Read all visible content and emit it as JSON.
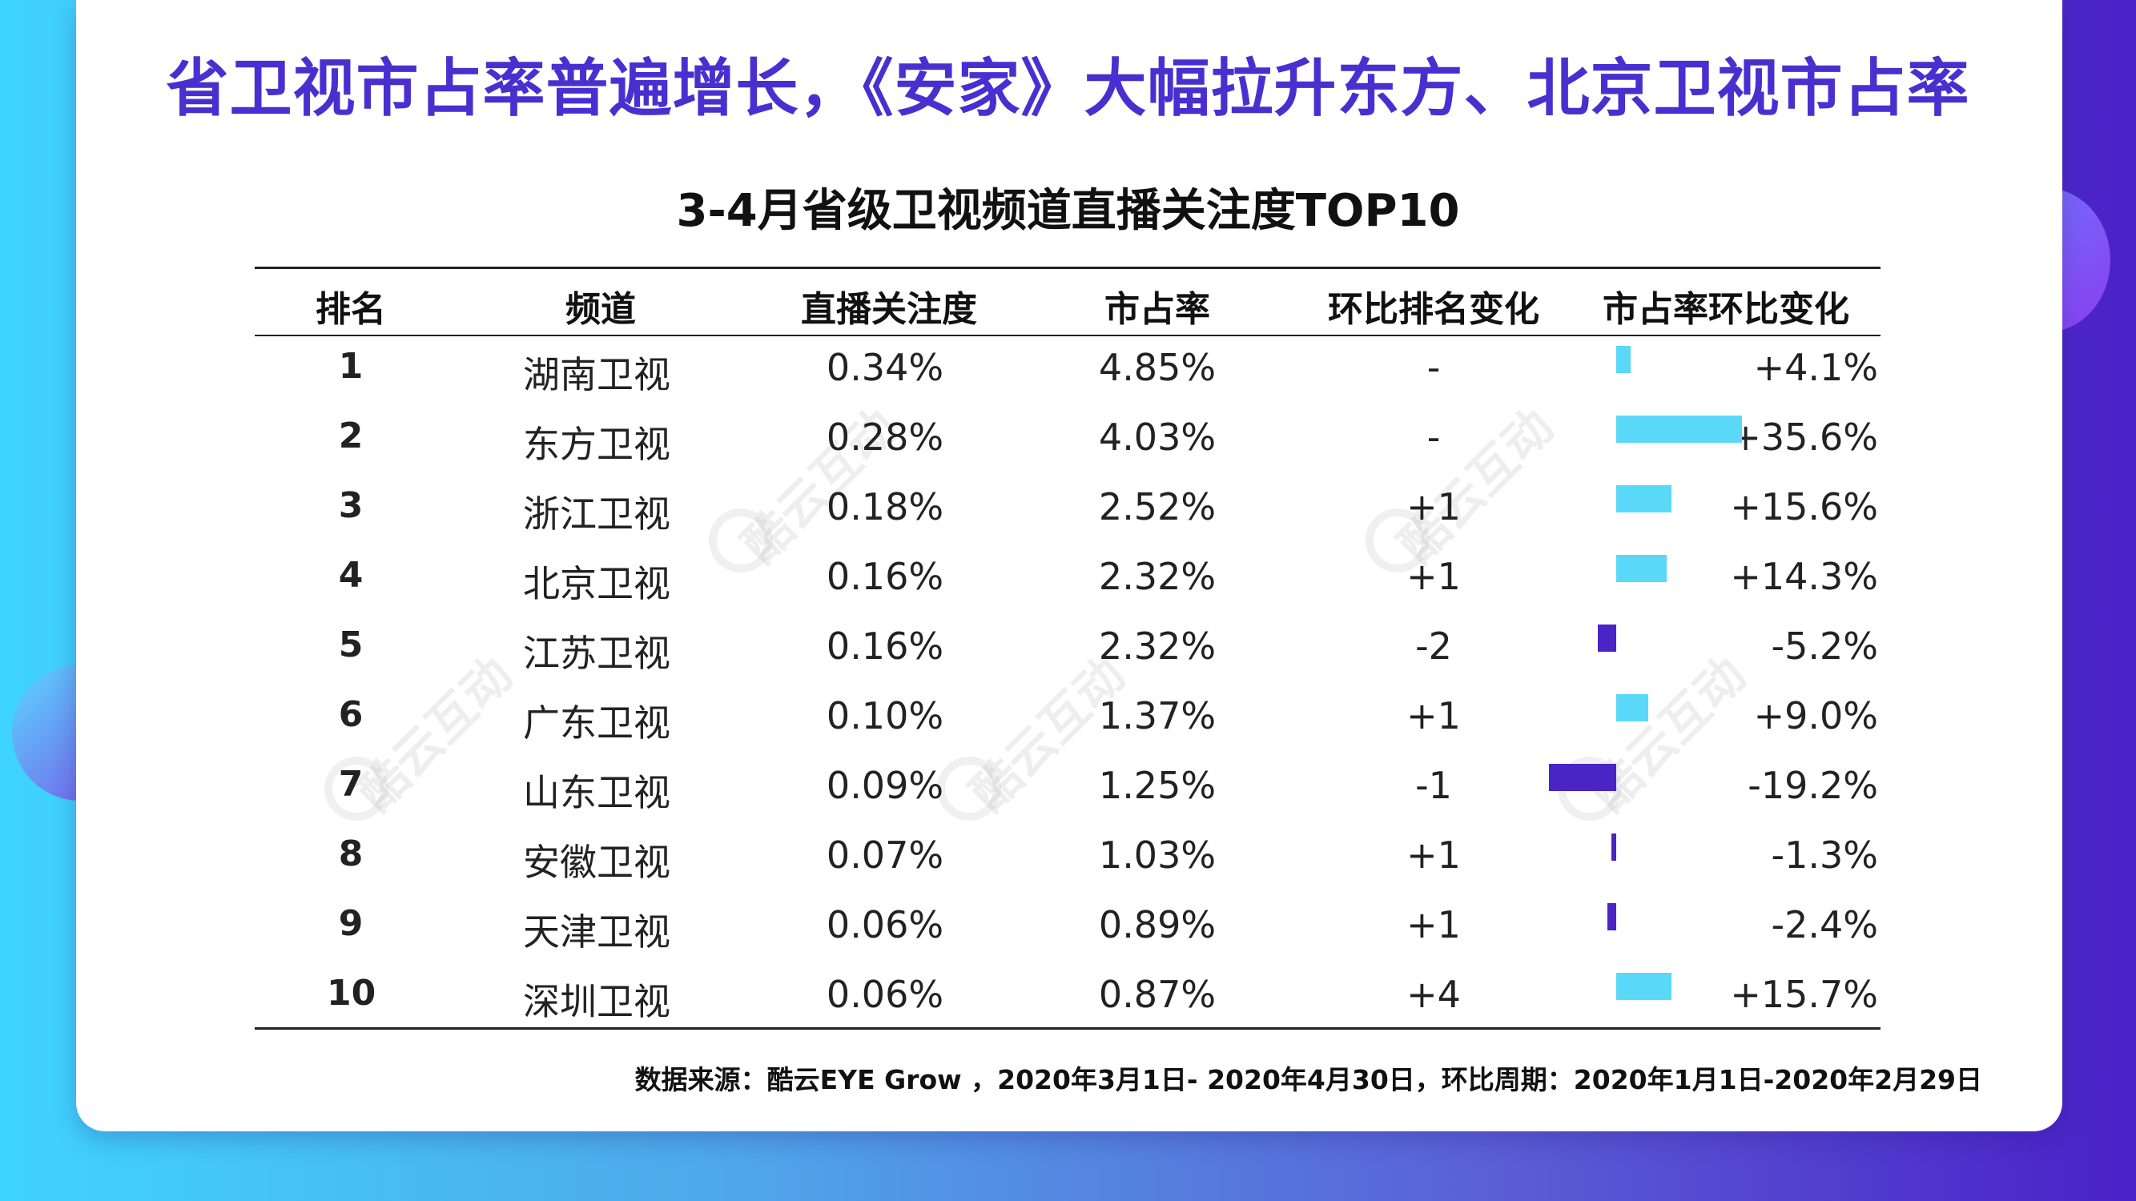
{
  "title": "省卫视市占率普遍增长，《安家》大幅拉升东方、北京卫视市占率",
  "chart_data": {
    "type": "table",
    "title": "3-4月省级卫视频道直播关注度TOP10",
    "columns": [
      "排名",
      "频道",
      "直播关注度",
      "市占率",
      "环比排名变化",
      "市占率环比变化"
    ],
    "rows": [
      {
        "rank": "1",
        "channel": "湖南卫视",
        "attention": "0.34%",
        "share": "4.85%",
        "rank_change": "-",
        "share_change": "+4.1%",
        "share_change_value": 4.1
      },
      {
        "rank": "2",
        "channel": "东方卫视",
        "attention": "0.28%",
        "share": "4.03%",
        "rank_change": "-",
        "share_change": "+35.6%",
        "share_change_value": 35.6
      },
      {
        "rank": "3",
        "channel": "浙江卫视",
        "attention": "0.18%",
        "share": "2.52%",
        "rank_change": "+1",
        "share_change": "+15.6%",
        "share_change_value": 15.6
      },
      {
        "rank": "4",
        "channel": "北京卫视",
        "attention": "0.16%",
        "share": "2.32%",
        "rank_change": "+1",
        "share_change": "+14.3%",
        "share_change_value": 14.3
      },
      {
        "rank": "5",
        "channel": "江苏卫视",
        "attention": "0.16%",
        "share": "2.32%",
        "rank_change": "-2",
        "share_change": "-5.2%",
        "share_change_value": -5.2
      },
      {
        "rank": "6",
        "channel": "广东卫视",
        "attention": "0.10%",
        "share": "1.37%",
        "rank_change": "+1",
        "share_change": "+9.0%",
        "share_change_value": 9.0
      },
      {
        "rank": "7",
        "channel": "山东卫视",
        "attention": "0.09%",
        "share": "1.25%",
        "rank_change": "-1",
        "share_change": "-19.2%",
        "share_change_value": -19.2
      },
      {
        "rank": "8",
        "channel": "安徽卫视",
        "attention": "0.07%",
        "share": "1.03%",
        "rank_change": "+1",
        "share_change": "-1.3%",
        "share_change_value": -1.3
      },
      {
        "rank": "9",
        "channel": "天津卫视",
        "attention": "0.06%",
        "share": "0.89%",
        "rank_change": "+1",
        "share_change": "-2.4%",
        "share_change_value": -2.4
      },
      {
        "rank": "10",
        "channel": "深圳卫视",
        "attention": "0.06%",
        "share": "0.87%",
        "rank_change": "+4",
        "share_change": "+15.7%",
        "share_change_value": 15.7
      }
    ],
    "bar_colors": {
      "positive": "#5ad8f7",
      "negative": "#4a24c4"
    }
  },
  "watermark": "酷云互动",
  "source": "数据来源：酷云EYE Grow ，2020年3月1日- 2020年4月30日，环比周期：2020年1月1日-2020年2月29日"
}
